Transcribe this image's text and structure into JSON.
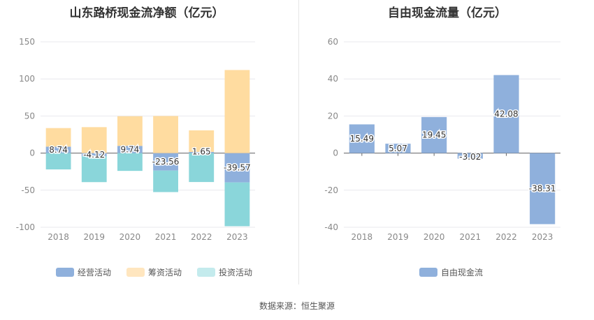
{
  "source": "数据来源：恒生聚源",
  "colors": {
    "operating": "#8fb0dc",
    "financing": "#ffdca0",
    "investing": "#8ad6da",
    "free_cash": "#8fb0dc",
    "grid": "#e8e8ee",
    "axis_text": "#888888",
    "label_text": "#333333"
  },
  "chart_data": [
    {
      "type": "bar",
      "stacked": true,
      "title": "山东路桥现金流净额（亿元）",
      "categories": [
        "2018",
        "2019",
        "2020",
        "2021",
        "2022",
        "2023"
      ],
      "ylim": [
        -100,
        150
      ],
      "yticks": [
        "150",
        "100",
        "50",
        "0",
        "-50",
        "-100"
      ],
      "grid": true,
      "legend_position": "bottom",
      "series": [
        {
          "name": "经营活动",
          "values": [
            8.74,
            -4.12,
            9.74,
            -23.56,
            1.65,
            -39.57
          ],
          "labels": [
            "8.74",
            "-4.12",
            "9.74",
            "-23.56",
            "1.65",
            "-39.57"
          ]
        },
        {
          "name": "筹资活动",
          "values": [
            25,
            35,
            40,
            50,
            29,
            112
          ]
        },
        {
          "name": "投资活动",
          "values": [
            -22,
            -35,
            -24,
            -29,
            -39,
            -59
          ]
        }
      ]
    },
    {
      "type": "bar",
      "title": "自由现金流量（亿元）",
      "categories": [
        "2018",
        "2019",
        "2020",
        "2021",
        "2022",
        "2023"
      ],
      "ylim": [
        -40,
        60
      ],
      "yticks": [
        "60",
        "40",
        "20",
        "0",
        "-20",
        "-40"
      ],
      "grid": true,
      "legend_position": "bottom",
      "series": [
        {
          "name": "自由现金流",
          "values": [
            15.49,
            5.07,
            19.45,
            -3.02,
            42.08,
            -38.31
          ],
          "labels": [
            "15.49",
            "5.07",
            "19.45",
            "-3.02",
            "42.08",
            "-38.31"
          ]
        }
      ]
    }
  ]
}
